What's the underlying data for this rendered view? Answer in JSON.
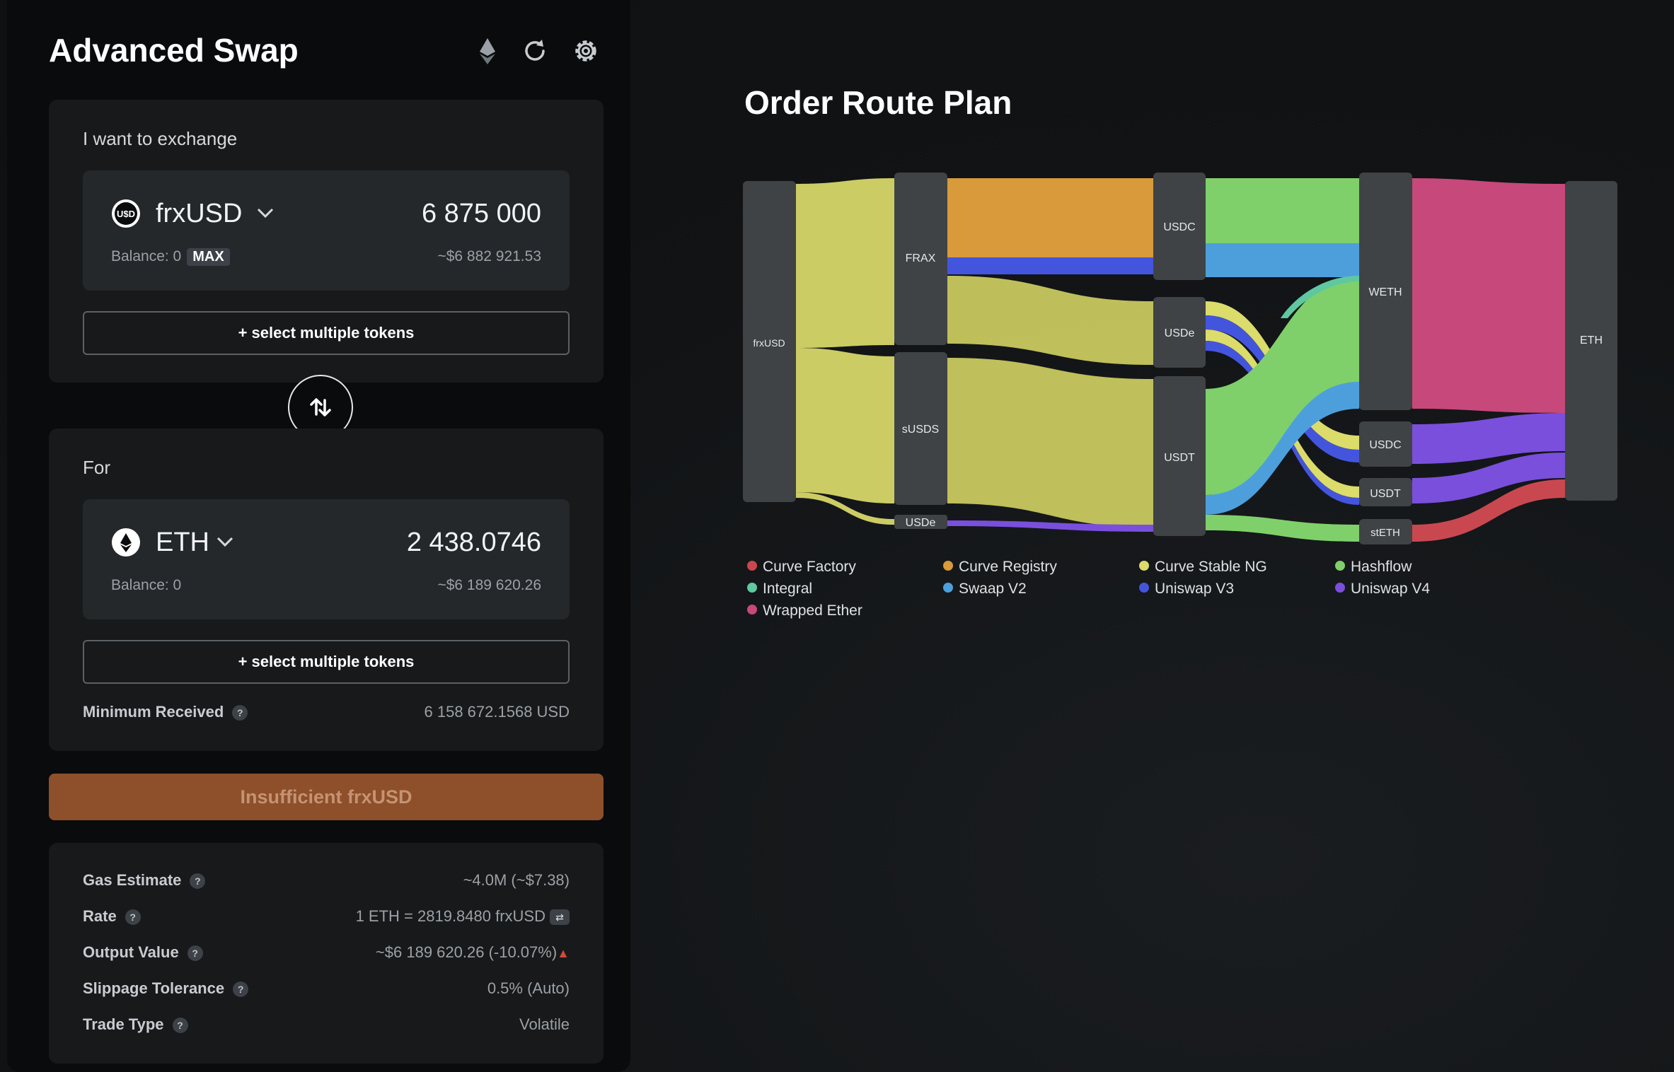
{
  "header": {
    "title": "Advanced Swap",
    "icons": [
      "ethereum-icon",
      "refresh-icon",
      "settings-gear-icon"
    ]
  },
  "from": {
    "label": "I want to exchange",
    "token": "frxUSD",
    "token_icon": "usd-coin-icon",
    "amount": "6 875 000",
    "balance": "Balance: 0",
    "max_label": "MAX",
    "usd_value": "~$6 882 921.53",
    "multi_label": "+ select multiple tokens"
  },
  "to": {
    "label": "For",
    "token": "ETH",
    "token_icon": "eth-icon",
    "amount": "2 438.0746",
    "balance": "Balance: 0",
    "usd_value": "~$6 189 620.26",
    "multi_label": "+ select multiple tokens",
    "min_received_label": "Minimum Received",
    "min_received_value": "6 158 672.1568 USD"
  },
  "action": {
    "label": "Insufficient frxUSD",
    "color": "#8e4f2b"
  },
  "details": [
    {
      "label": "Gas Estimate",
      "value": "~4.0M (~$7.38)"
    },
    {
      "label": "Rate",
      "value": "1 ETH = 2819.8480 frxUSD"
    },
    {
      "label": "Output Value",
      "value": "~$6 189 620.26 (-10.07%)"
    },
    {
      "label": "Slippage Tolerance",
      "value": "0.5% (Auto)"
    },
    {
      "label": "Trade Type",
      "value": "Volatile"
    }
  ],
  "route": {
    "title": "Order Route Plan",
    "nodes": [
      {
        "id": "frxUSD",
        "label": "frxUSD"
      },
      {
        "id": "FRAX",
        "label": "FRAX"
      },
      {
        "id": "sUSDS",
        "label": "sUSDS"
      },
      {
        "id": "USDe1",
        "label": "USDe"
      },
      {
        "id": "USDC1",
        "label": "USDC"
      },
      {
        "id": "USDe2",
        "label": "USDe"
      },
      {
        "id": "USDT1",
        "label": "USDT"
      },
      {
        "id": "WETH",
        "label": "WETH"
      },
      {
        "id": "USDC2",
        "label": "USDC"
      },
      {
        "id": "USDT2",
        "label": "USDT"
      },
      {
        "id": "stETH",
        "label": "stETH"
      },
      {
        "id": "ETH",
        "label": "ETH"
      }
    ],
    "legend": [
      {
        "name": "Curve Factory",
        "color": "#c9484f"
      },
      {
        "name": "Curve Registry",
        "color": "#d89a3a"
      },
      {
        "name": "Curve Stable NG",
        "color": "#dbdc6a"
      },
      {
        "name": "Hashflow",
        "color": "#7fd06a"
      },
      {
        "name": "Integral",
        "color": "#5fc8a0"
      },
      {
        "name": "Swaap V2",
        "color": "#4d9fdc"
      },
      {
        "name": "Uniswap V3",
        "color": "#4455dd"
      },
      {
        "name": "Uniswap V4",
        "color": "#7a4fdc"
      },
      {
        "name": "Wrapped Ether",
        "color": "#c7487a"
      }
    ]
  }
}
